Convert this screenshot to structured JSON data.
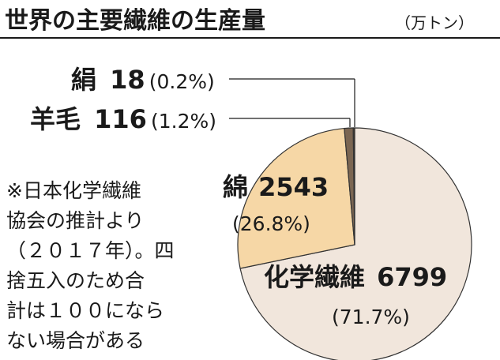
{
  "chart_data": {
    "type": "pie",
    "title": "世界の主要繊維の生産量",
    "unit": "（万トン）",
    "categories": [
      "化学繊維",
      "綿",
      "羊毛",
      "絹"
    ],
    "values": [
      6799,
      2543,
      116,
      18
    ],
    "percent_labels": [
      "(71.7%)",
      "(26.8%)",
      "(1.2%)",
      "(0.2%)"
    ],
    "value_labels": [
      "6799",
      "2543",
      "116",
      "18"
    ],
    "colors": {
      "化学繊維": "#f1e6dc",
      "綿": "#f6d7a6",
      "羊毛": "#7b6652",
      "絹": "#4b3a2a"
    },
    "note_lines": [
      "※日本化学繊維",
      "協会の推計より",
      "（２０１７年）。四",
      "捨五入のため合",
      "計は１００になら",
      "ない場合がある"
    ]
  }
}
